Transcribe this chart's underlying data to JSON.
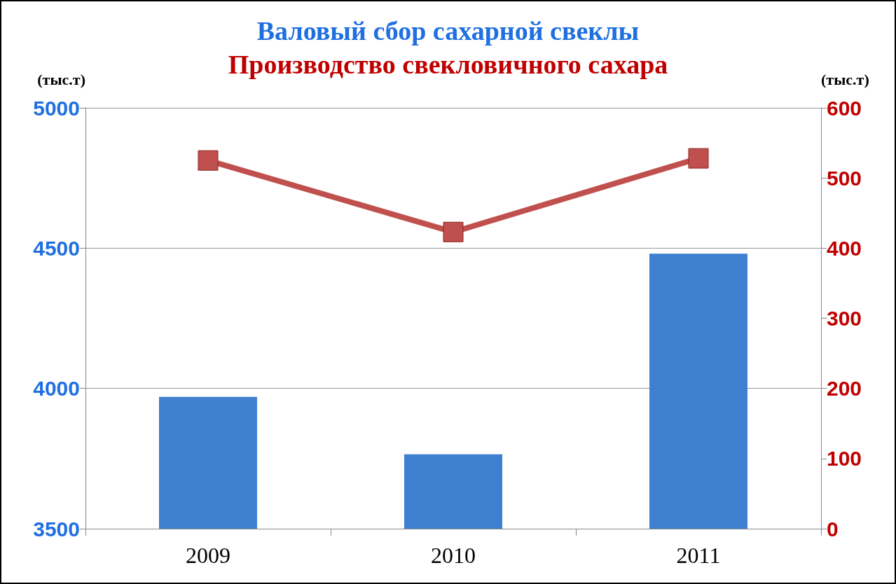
{
  "chart_data": {
    "type": "bar",
    "title": "Валовый сбор сахарной свеклы",
    "subtitle": "Производство свекловичного сахара",
    "ylabel": "(тыс.т)",
    "y2label": "(тыс.т)",
    "categories": [
      "2009",
      "2010",
      "2011"
    ],
    "series": [
      {
        "color": "#3f7fd0",
        "values": [
          3970,
          3765,
          4480
        ]
      },
      {
        "type": "line",
        "axis": "y2",
        "color": "#c0504d",
        "values": [
          525,
          423,
          528
        ]
      }
    ],
    "ylim": [
      3500,
      5000
    ],
    "yticks": [
      3500,
      4000,
      4500,
      5000
    ],
    "y2lim": [
      0,
      600
    ],
    "y2ticks": [
      0,
      100,
      200,
      300,
      400,
      500,
      600
    ],
    "grid": "y",
    "marker": "square",
    "line_style": "solid"
  }
}
